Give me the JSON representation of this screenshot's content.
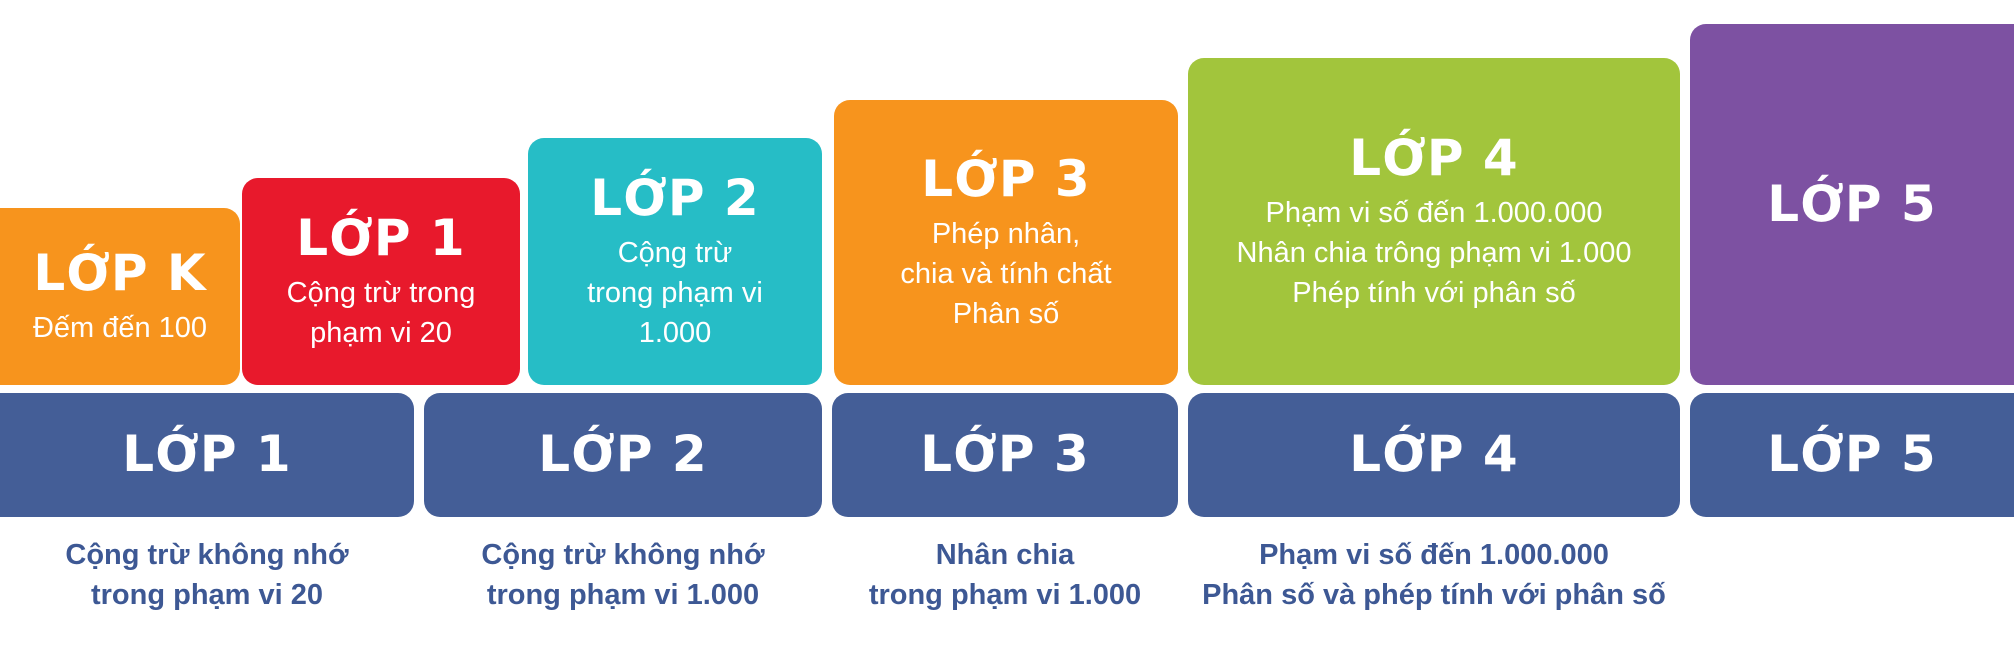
{
  "top_cards": [
    {
      "title": "LỚP K",
      "desc": "Đếm đến 100",
      "color": "#f7941d"
    },
    {
      "title": "LỚP 1",
      "desc": "Cộng trừ trong\nphạm vi 20",
      "color": "#e8192c"
    },
    {
      "title": "LỚP 2",
      "desc": "Cộng trừ\ntrong phạm vi\n1.000",
      "color": "#26bdc6"
    },
    {
      "title": "LỚP 3",
      "desc": "Phép nhân,\nchia và tính chất\nPhân số",
      "color": "#f7941d"
    },
    {
      "title": "LỚP 4",
      "desc": "Phạm vi số đến 1.000.000\nNhân chia trông phạm vi 1.000\nPhép tính với phân số",
      "color": "#a2c53c"
    },
    {
      "title": "LỚP 5",
      "desc": "",
      "color": "#7d51a2"
    }
  ],
  "bottom_bars": [
    {
      "title": "LỚP 1",
      "note": "Cộng trừ không nhớ\ntrong phạm vi 20"
    },
    {
      "title": "LỚP 2",
      "note": "Cộng trừ không nhớ\ntrong phạm vi 1.000"
    },
    {
      "title": "LỚP 3",
      "note": "Nhân chia\ntrong phạm vi 1.000"
    },
    {
      "title": "LỚP 4",
      "note": "Phạm vi số đến 1.000.000\nPhân số và phép tính với phân số"
    },
    {
      "title": "LỚP 5",
      "note": ""
    }
  ],
  "colors": {
    "bottom_bar": "#445e97",
    "note_text": "#3d5894"
  }
}
